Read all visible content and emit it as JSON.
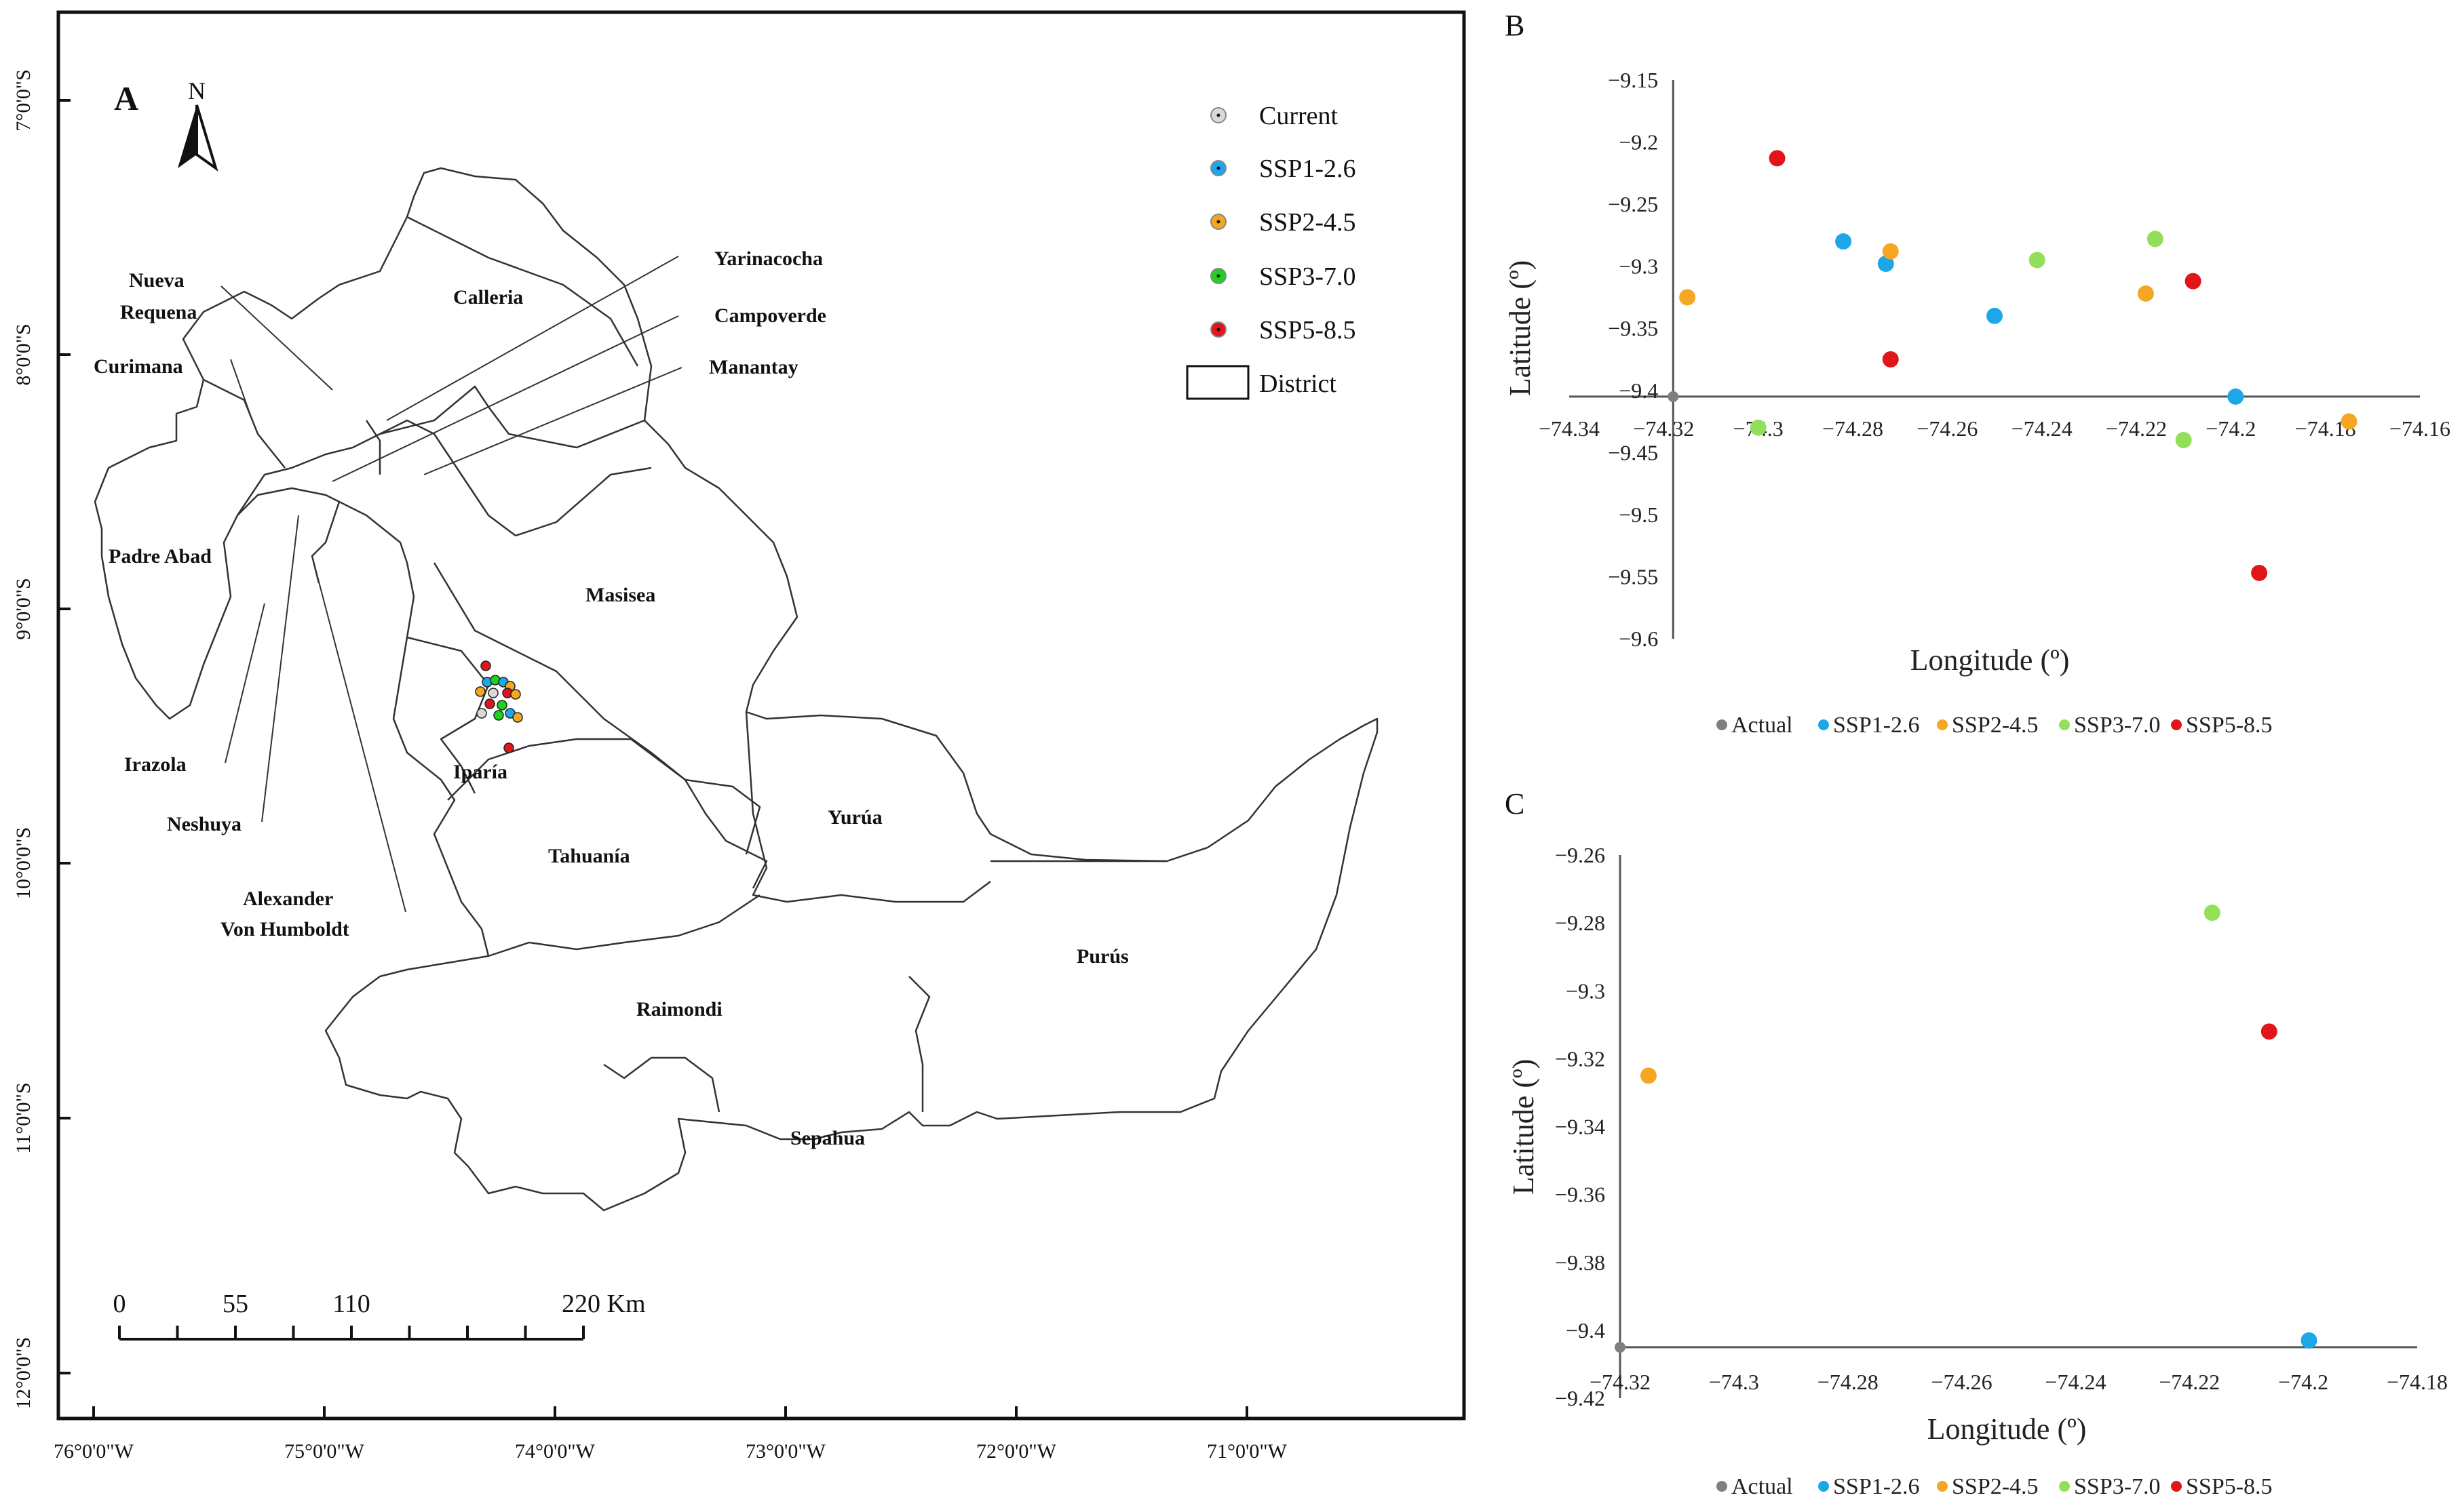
{
  "panel_a": {
    "label": "A",
    "north": "N",
    "lat_ticks": [
      "7°0'0\"S",
      "8°0'0\"S",
      "9°0'0\"S",
      "10°0'0\"S",
      "11°0'0\"S",
      "12°0'0\"S"
    ],
    "lon_ticks": [
      "76°0'0\"W",
      "75°0'0\"W",
      "74°0'0\"W",
      "73°0'0\"W",
      "72°0'0\"W",
      "71°0'0\"W"
    ],
    "districts": [
      "Calleria",
      "Yarinacocha",
      "Campoverde",
      "Manantay",
      "Curimana",
      "Padre Abad",
      "Masisea",
      "Iparía",
      "Irazola",
      "Neshuya",
      "Tahuanía",
      "Yurúa",
      "Purús",
      "Raimondi",
      "Sepahua"
    ],
    "nueva_requena": [
      "Nueva",
      "Requena"
    ],
    "alexander": [
      "Alexander",
      "Von Humboldt"
    ],
    "legend": [
      {
        "label": "Current",
        "color": "#d9d9d9"
      },
      {
        "label": "SSP1-2.6",
        "color": "#1ea7e8"
      },
      {
        "label": "SSP2-4.5",
        "color": "#f5a623"
      },
      {
        "label": "SSP3-7.0",
        "color": "#1fd11f"
      },
      {
        "label": "SSP5-8.5",
        "color": "#e0161b"
      }
    ],
    "legend_district": "District",
    "scale_labels": [
      "0",
      "55",
      "110",
      "220 Km"
    ]
  },
  "chart_data": [
    {
      "panel": "B",
      "type": "scatter",
      "xlabel": "Longitude (º)",
      "ylabel": "Latitude (º)",
      "xlim": [
        -74.34,
        -74.16
      ],
      "ylim": [
        -9.6,
        -9.15
      ],
      "x_ticks": [
        -74.34,
        -74.32,
        -74.3,
        -74.28,
        -74.26,
        -74.24,
        -74.22,
        -74.2,
        -74.18,
        -74.16
      ],
      "y_ticks": [
        -9.15,
        -9.2,
        -9.25,
        -9.3,
        -9.35,
        -9.4,
        -9.45,
        -9.5,
        -9.55,
        -9.6
      ],
      "x_tick_labels": [
        "-74.34",
        "-74.32",
        "-74.3",
        "-74.28",
        "-74.26",
        "-74.24",
        "-74.22",
        "-74.2",
        "-74.18",
        "-74.16"
      ],
      "y_tick_labels": [
        "-9.15",
        "-9.2",
        "-9.25",
        "-9.3",
        "-9.35",
        "-9.4",
        "-9.45",
        "-9.5",
        "-9.55",
        "-9.6"
      ],
      "axis_cross": {
        "x": -74.318,
        "y": -9.405
      },
      "series": [
        {
          "name": "Actual",
          "color": "#7f7f7f",
          "points": [
            [
              -74.318,
              -9.405
            ]
          ]
        },
        {
          "name": "SSP1-2.6",
          "color": "#1ea7e8",
          "points": [
            [
              -74.282,
              -9.28
            ],
            [
              -74.273,
              -9.298
            ],
            [
              -74.25,
              -9.34
            ],
            [
              -74.199,
              -9.405
            ]
          ]
        },
        {
          "name": "SSP2-4.5",
          "color": "#f5a623",
          "points": [
            [
              -74.315,
              -9.325
            ],
            [
              -74.272,
              -9.288
            ],
            [
              -74.218,
              -9.322
            ],
            [
              -74.175,
              -9.425
            ]
          ]
        },
        {
          "name": "SSP3-7.0",
          "color": "#92e05a",
          "points": [
            [
              -74.3,
              -9.43
            ],
            [
              -74.241,
              -9.295
            ],
            [
              -74.216,
              -9.278
            ],
            [
              -74.21,
              -9.44
            ]
          ]
        },
        {
          "name": "SSP5-8.5",
          "color": "#e0161b",
          "points": [
            [
              -74.296,
              -9.213
            ],
            [
              -74.272,
              -9.375
            ],
            [
              -74.208,
              -9.312
            ],
            [
              -74.194,
              -9.547
            ]
          ]
        }
      ],
      "legend": [
        "Actual",
        "SSP1-2.6",
        "SSP2-4.5",
        "SSP3-7.0",
        "SSP5-8.5"
      ]
    },
    {
      "panel": "C",
      "type": "scatter",
      "xlabel": "Longitude (º)",
      "ylabel": "Latitude (º)",
      "xlim": [
        -74.32,
        -74.18
      ],
      "ylim": [
        -9.42,
        -9.26
      ],
      "x_ticks": [
        -74.32,
        -74.3,
        -74.28,
        -74.26,
        -74.24,
        -74.22,
        -74.2,
        -74.18
      ],
      "y_ticks": [
        -9.26,
        -9.28,
        -9.3,
        -9.32,
        -9.34,
        -9.36,
        -9.38,
        -9.4,
        -9.42
      ],
      "x_tick_labels": [
        "-74.32",
        "-74.3",
        "-74.28",
        "-74.26",
        "-74.24",
        "-74.22",
        "-74.2",
        "-74.18"
      ],
      "y_tick_labels": [
        "-9.26",
        "-9.28",
        "-9.3",
        "-9.32",
        "-9.34",
        "-9.36",
        "-9.38",
        "-9.4",
        "-9.42"
      ],
      "axis_cross": {
        "x": -74.32,
        "y": -9.405
      },
      "series": [
        {
          "name": "Actual",
          "color": "#7f7f7f",
          "points": [
            [
              -74.32,
              -9.405
            ]
          ]
        },
        {
          "name": "SSP1-2.6",
          "color": "#1ea7e8",
          "points": [
            [
              -74.199,
              -9.403
            ]
          ]
        },
        {
          "name": "SSP2-4.5",
          "color": "#f5a623",
          "points": [
            [
              -74.315,
              -9.325
            ]
          ]
        },
        {
          "name": "SSP3-7.0",
          "color": "#92e05a",
          "points": [
            [
              -74.216,
              -9.277
            ]
          ]
        },
        {
          "name": "SSP5-8.5",
          "color": "#e0161b",
          "points": [
            [
              -74.206,
              -9.312
            ]
          ]
        }
      ],
      "legend": [
        "Actual",
        "SSP1-2.6",
        "SSP2-4.5",
        "SSP3-7.0",
        "SSP5-8.5"
      ]
    }
  ]
}
